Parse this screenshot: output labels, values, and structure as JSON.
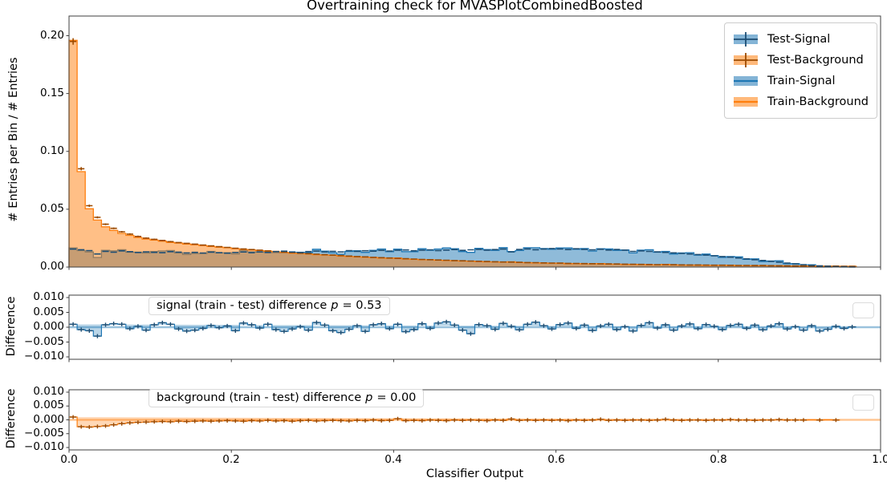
{
  "title": "Overtraining check for MVASPlotCombinedBoosted",
  "axes": {
    "xlabel": "Classifier Output",
    "ylabel_main": "# Entries per Bin / # Entries",
    "ylabel_diff": "Difference"
  },
  "legend": {
    "items": [
      "Test-Signal",
      "Test-Background",
      "Train-Signal",
      "Train-Background"
    ]
  },
  "annotations": {
    "signal": {
      "label": "signal (train - test) difference",
      "p": "p",
      "value": "= 0.53"
    },
    "background": {
      "label": "background (train - test) difference",
      "p": "p",
      "value": "= 0.00"
    }
  },
  "colors": {
    "signal": "#1f77b4",
    "background": "#ff7f0e",
    "signal_dark": "#1d4e74",
    "background_dark": "#9c4a00",
    "spine": "#3f3f3f"
  },
  "chart_data": {
    "type": "bar",
    "subtype": "normalized histograms with difference sub-panels, 100 bins over [0,1]",
    "x_range": [
      0,
      1
    ],
    "n_bins": 100,
    "xtick_values": [
      0.0,
      0.2,
      0.4,
      0.6,
      0.8,
      1.0
    ],
    "xtick_labels": [
      "0.0",
      "0.2",
      "0.4",
      "0.6",
      "0.8",
      "1.0"
    ],
    "legend_position": "upper right",
    "grid": false,
    "panels": [
      {
        "name": "main",
        "ylim": [
          0,
          0.217
        ],
        "ytick_values": [
          0.2,
          0.15,
          0.1,
          0.05,
          0.0
        ],
        "ytick_labels": [
          "0.20",
          "0.15",
          "0.10",
          "0.05",
          "0.00"
        ],
        "series": [
          {
            "name": "Test-Signal",
            "style": "errorbar-hist",
            "color_key": "signal_dark",
            "values": [
              0.0155,
              0.015,
              0.0142,
              0.0113,
              0.0136,
              0.0128,
              0.014,
              0.0133,
              0.0126,
              0.0131,
              0.0127,
              0.0124,
              0.0133,
              0.0129,
              0.0122,
              0.0127,
              0.0121,
              0.0129,
              0.0124,
              0.012,
              0.0126,
              0.013,
              0.0124,
              0.0131,
              0.0126,
              0.0133,
              0.0137,
              0.013,
              0.0126,
              0.0134,
              0.0138,
              0.0131,
              0.0136,
              0.013,
              0.0142,
              0.0136,
              0.0141,
              0.0137,
              0.0144,
              0.0138,
              0.0145,
              0.0148,
              0.0141,
              0.0146,
              0.0149,
              0.0142,
              0.0147,
              0.0151,
              0.0144,
              0.0149,
              0.0153,
              0.0146,
              0.0151,
              0.0155,
              0.0131,
              0.0152,
              0.0157,
              0.015,
              0.0155,
              0.016,
              0.0156,
              0.0151,
              0.0158,
              0.0153,
              0.0149,
              0.0154,
              0.0147,
              0.0152,
              0.0146,
              0.0135,
              0.014,
              0.0135,
              0.0131,
              0.0127,
              0.0123,
              0.0118,
              0.0113,
              0.0108,
              0.0103,
              0.0097,
              0.0091,
              0.0085,
              0.0078,
              0.0071,
              0.0064,
              0.0057,
              0.0049,
              0.0042,
              0.0035,
              0.0028,
              0.0021,
              0.0015,
              0.001,
              0.0006,
              0.0003,
              0.0002,
              0.0001,
              0.0,
              0.0,
              0.0
            ]
          },
          {
            "name": "Test-Background",
            "style": "errorbar-hist",
            "color_key": "background_dark",
            "values": [
              0.195,
              0.085,
              0.053,
              0.043,
              0.037,
              0.0335,
              0.0305,
              0.0285,
              0.0265,
              0.025,
              0.024,
              0.023,
              0.022,
              0.0212,
              0.0205,
              0.0198,
              0.019,
              0.0183,
              0.0176,
              0.017,
              0.0163,
              0.0157,
              0.0151,
              0.0146,
              0.014,
              0.0135,
              0.013,
              0.0125,
              0.012,
              0.0116,
              0.0111,
              0.0107,
              0.0103,
              0.0099,
              0.0095,
              0.0091,
              0.0088,
              0.0084,
              0.0081,
              0.0078,
              0.0075,
              0.0072,
              0.0069,
              0.0066,
              0.0064,
              0.0061,
              0.0059,
              0.0056,
              0.0054,
              0.0052,
              0.005,
              0.0048,
              0.0046,
              0.0044,
              0.0043,
              0.0041,
              0.0039,
              0.0038,
              0.0036,
              0.0035,
              0.0034,
              0.0032,
              0.0031,
              0.003,
              0.0029,
              0.0028,
              0.0027,
              0.0026,
              0.0025,
              0.0024,
              0.0023,
              0.0022,
              0.0021,
              0.0021,
              0.002,
              0.0019,
              0.0018,
              0.0018,
              0.0017,
              0.0016,
              0.0016,
              0.0015,
              0.0014,
              0.0014,
              0.0013,
              0.0013,
              0.0012,
              0.0011,
              0.0011,
              0.001,
              0.001,
              0.0009,
              0.0009,
              0.0008,
              0.0008,
              0.0007,
              0.0007,
              0.0,
              0.0,
              0.0
            ]
          },
          {
            "name": "Train-Signal",
            "style": "filled-step",
            "color_key": "signal",
            "derived": "Test-Signal values + signal difference values"
          },
          {
            "name": "Train-Background",
            "style": "filled-step",
            "color_key": "background",
            "derived": "Test-Background values + background difference values"
          }
        ]
      },
      {
        "name": "signal_difference",
        "p_value": 0.53,
        "ylim": [
          -0.0108,
          0.0108
        ],
        "ytick_values": [
          0.01,
          0.005,
          0.0,
          -0.005,
          -0.01
        ],
        "ytick_labels": [
          "0.010",
          "0.005",
          "0.000",
          "−0.005",
          "−0.010"
        ],
        "series": [
          {
            "name": "signal train-test difference",
            "style": "step-errorbar",
            "color_key": "signal",
            "values": [
              0.001,
              -0.0008,
              -0.0012,
              -0.003,
              0.0008,
              0.0012,
              0.001,
              -0.0005,
              0.0003,
              -0.001,
              0.0008,
              0.0015,
              0.001,
              -0.0006,
              -0.0013,
              -0.001,
              -0.0004,
              0.0006,
              -0.0002,
              0.0004,
              -0.0012,
              0.0014,
              0.0008,
              -0.0003,
              0.001,
              -0.0008,
              -0.0014,
              -0.0006,
              0.0002,
              -0.001,
              0.0016,
              0.0007,
              -0.0012,
              -0.0018,
              -0.0007,
              0.0005,
              -0.0014,
              0.0008,
              0.0012,
              -0.0005,
              0.001,
              -0.0015,
              -0.0008,
              0.0012,
              -0.0004,
              0.0014,
              0.0018,
              0.0007,
              -0.001,
              -0.0022,
              0.0009,
              0.0005,
              -0.0007,
              0.0013,
              0.0003,
              -0.0009,
              0.001,
              0.0017,
              0.0005,
              -0.0006,
              0.0009,
              0.0014,
              -0.0004,
              0.0007,
              -0.0011,
              0.0004,
              0.001,
              -0.0008,
              0.0002,
              -0.0013,
              0.0006,
              0.0015,
              -0.0003,
              0.0008,
              -0.001,
              0.0004,
              0.0011,
              -0.0005,
              0.0009,
              0.0003,
              -0.0008,
              0.0006,
              0.001,
              -0.0004,
              0.0007,
              -0.0009,
              0.0004,
              0.0012,
              -0.0006,
              0.0002,
              -0.001,
              0.0005,
              -0.0013,
              -0.0007,
              0.0003,
              -0.0004,
              0.0001,
              0.0,
              0.0,
              0.0
            ]
          }
        ]
      },
      {
        "name": "background_difference",
        "p_value": 0.0,
        "ylim": [
          -0.0108,
          0.0108
        ],
        "ytick_values": [
          0.01,
          0.005,
          0.0,
          -0.005,
          -0.01
        ],
        "ytick_labels": [
          "0.010",
          "0.005",
          "0.000",
          "−0.005",
          "−0.010"
        ],
        "series": [
          {
            "name": "background train-test difference",
            "style": "step-errorbar",
            "color_key": "background",
            "values": [
              0.001,
              -0.0025,
              -0.0026,
              -0.0024,
              -0.0022,
              -0.0018,
              -0.0014,
              -0.0011,
              -0.0009,
              -0.0008,
              -0.0007,
              -0.0006,
              -0.0007,
              -0.0005,
              -0.0006,
              -0.0005,
              -0.0004,
              -0.0005,
              -0.0004,
              -0.0003,
              -0.0004,
              -0.0005,
              -0.0003,
              -0.0004,
              -0.0002,
              -0.0004,
              -0.0003,
              -0.0005,
              -0.0003,
              -0.0002,
              -0.0004,
              -0.0003,
              -0.0002,
              -0.0003,
              -0.0004,
              -0.0002,
              -0.0003,
              -0.0001,
              -0.0003,
              -0.0002,
              0.0004,
              -0.0003,
              -0.0002,
              -0.0003,
              -0.0001,
              -0.0002,
              -0.0003,
              -0.0001,
              -0.0002,
              -0.0001,
              -0.0002,
              -0.0003,
              -0.0001,
              -0.0002,
              0.0003,
              -0.0002,
              -0.0001,
              -0.0002,
              -0.0001,
              -0.0002,
              -0.0001,
              -0.0003,
              -0.0001,
              -0.0002,
              -0.0001,
              0.0002,
              -0.0002,
              -0.0001,
              -0.0002,
              -0.0001,
              -0.0001,
              -0.0002,
              -0.0001,
              0.0002,
              -0.0001,
              -0.0002,
              -0.0001,
              -0.0001,
              -0.0002,
              -0.0001,
              -0.0001,
              0.0001,
              -0.0001,
              -0.0001,
              -0.0002,
              -0.0001,
              -0.0001,
              0.0001,
              -0.0001,
              -0.0001,
              -0.0001,
              0.0,
              -0.0001,
              0.0,
              -0.0001,
              0.0,
              0.0,
              0.0,
              0.0,
              0.0
            ]
          }
        ]
      }
    ]
  }
}
